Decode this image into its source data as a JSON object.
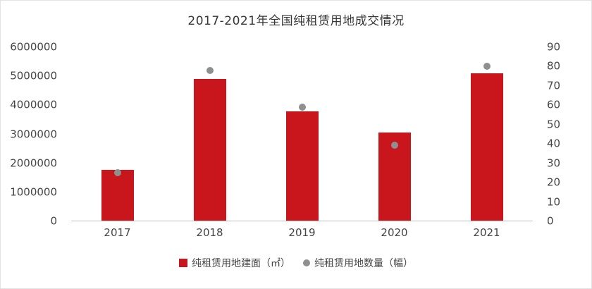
{
  "title": "2017-2021年全国纯租赁用地成交情况",
  "colors": {
    "bar": "#c9161d",
    "dot": "#8f8f8f",
    "axis_text": "#454545",
    "axis_line": "#bfbfbf"
  },
  "legend": {
    "bar_label": "纯租赁用地建面（㎡）",
    "dot_label": "纯租赁用地数量（幅）"
  },
  "chart_data": {
    "type": "bar",
    "subtype": "combo bar + scatter, dual axis",
    "title": "2017-2021年全国纯租赁用地成交情况",
    "categories": [
      "2017",
      "2018",
      "2019",
      "2020",
      "2021"
    ],
    "series": [
      {
        "name": "纯租赁用地建面（㎡）",
        "type": "bar",
        "axis": "left",
        "color": "#c9161d",
        "values": [
          1750000,
          4900000,
          3780000,
          3050000,
          5100000
        ]
      },
      {
        "name": "纯租赁用地数量（幅）",
        "type": "scatter",
        "axis": "right",
        "color": "#8f8f8f",
        "values": [
          25,
          78,
          59,
          39,
          80
        ]
      }
    ],
    "left_axis": {
      "min": 0,
      "max": 6000000,
      "step": 1000000,
      "ticks": [
        0,
        1000000,
        2000000,
        3000000,
        4000000,
        5000000,
        6000000
      ]
    },
    "right_axis": {
      "min": 0,
      "max": 90,
      "step": 10,
      "ticks": [
        0,
        10,
        20,
        30,
        40,
        50,
        60,
        70,
        80,
        90
      ]
    },
    "xlabel": "",
    "ylabel": "",
    "grid": false,
    "legend_position": "bottom"
  }
}
